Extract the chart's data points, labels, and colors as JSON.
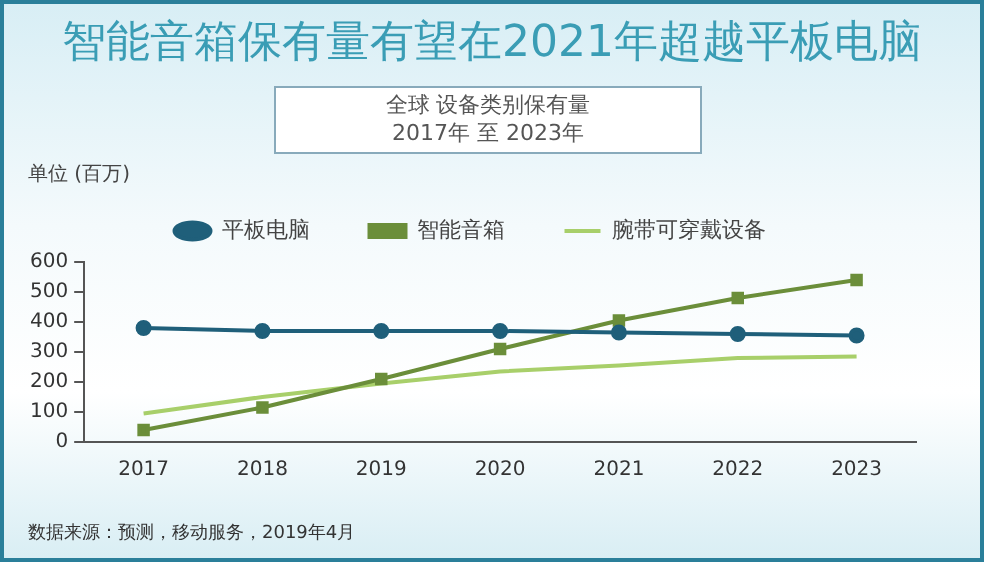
{
  "chart_data": {
    "type": "line",
    "title": "智能音箱保有量有望在2021年超越平板电脑",
    "subtitle": "全球 设备类别保有量\n2017年 至 2023年",
    "ylabel": "单位 (百万)",
    "annotations": [
      "数据来源：预测，移动服务，2019年4月"
    ],
    "categories": [
      "2017",
      "2018",
      "2019",
      "2020",
      "2021",
      "2022",
      "2023"
    ],
    "series": [
      {
        "name": "平板电脑",
        "color": "#1f5f7a",
        "marker": "circle",
        "values": [
          380,
          370,
          370,
          370,
          365,
          360,
          355
        ]
      },
      {
        "name": "智能音箱",
        "color": "#6b8e3a",
        "marker": "square",
        "values": [
          40,
          115,
          210,
          310,
          405,
          480,
          540
        ]
      },
      {
        "name": "腕带可穿戴设备",
        "color": "#a8cf6a",
        "marker": "none",
        "values": [
          95,
          150,
          195,
          235,
          255,
          280,
          285
        ]
      }
    ],
    "ylim": [
      0,
      600
    ],
    "yticks": [
      0,
      100,
      200,
      300,
      400,
      500,
      600
    ],
    "grid": false,
    "legend": "top",
    "line_style": "solid"
  }
}
